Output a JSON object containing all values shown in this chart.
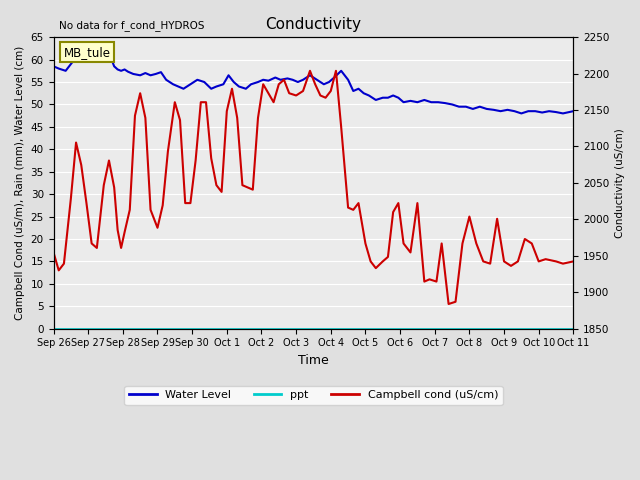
{
  "title": "Conductivity",
  "top_left_note": "No data for f_cond_HYDROS",
  "xlabel": "Time",
  "ylabel_left": "Campbell Cond (uS/m), Rain (mm), Water Level (cm)",
  "ylabel_right": "Conductivity (uS/cm)",
  "ylim_left": [
    0,
    65
  ],
  "ylim_right": [
    1850,
    2250
  ],
  "yticks_left": [
    0,
    5,
    10,
    15,
    20,
    25,
    30,
    35,
    40,
    45,
    50,
    55,
    60,
    65
  ],
  "yticks_right": [
    1850,
    1900,
    1950,
    2000,
    2050,
    2100,
    2150,
    2200,
    2250
  ],
  "xtick_labels": [
    "Sep 26",
    "Sep 27",
    "Sep 28",
    "Sep 29",
    "Sep 30",
    "Oct 1",
    "Oct 2",
    "Oct 3",
    "Oct 4",
    "Oct 5",
    "Oct 6",
    "Oct 7",
    "Oct 8",
    "Oct 9",
    "Oct 10",
    "Oct 11"
  ],
  "background_color": "#e0e0e0",
  "plot_bg_color": "#ebebeb",
  "annotation_box": "MB_tule",
  "annotation_box_bg": "#ffffcc",
  "annotation_box_border": "#888800",
  "water_level_color": "#0000cc",
  "ppt_color": "#00cccc",
  "campbell_cond_color": "#cc0000",
  "grid_color": "#ffffff",
  "linewidth_water": 1.5,
  "linewidth_campbell": 1.5,
  "linewidth_ppt": 1.2,
  "water_level_x": [
    0.0,
    0.15,
    0.35,
    0.55,
    0.75,
    0.95,
    1.1,
    1.25,
    1.4,
    1.55,
    1.65,
    1.75,
    1.85,
    1.95,
    2.05,
    2.15,
    2.3,
    2.5,
    2.65,
    2.8,
    2.95,
    3.1,
    3.25,
    3.45,
    3.6,
    3.75,
    3.95,
    4.15,
    4.35,
    4.55,
    4.7,
    4.9,
    5.05,
    5.2,
    5.35,
    5.55,
    5.7,
    5.9,
    6.05,
    6.2,
    6.4,
    6.55,
    6.75,
    6.9,
    7.05,
    7.2,
    7.4,
    7.6,
    7.8,
    7.95,
    8.1,
    8.3,
    8.5,
    8.65,
    8.8,
    8.95,
    9.1,
    9.3,
    9.5,
    9.65,
    9.8,
    9.95,
    10.1,
    10.3,
    10.5,
    10.7,
    10.9,
    11.1,
    11.3,
    11.5,
    11.7,
    11.9,
    12.1,
    12.3,
    12.5,
    12.7,
    12.9,
    13.1,
    13.3,
    13.5,
    13.7,
    13.9,
    14.1,
    14.3,
    14.5,
    14.7,
    15.0
  ],
  "water_level_y": [
    58.5,
    58.0,
    57.5,
    59.5,
    61.0,
    62.2,
    62.5,
    61.5,
    61.2,
    61.5,
    60.5,
    58.5,
    57.8,
    57.5,
    57.8,
    57.3,
    56.8,
    56.5,
    57.0,
    56.5,
    56.8,
    57.2,
    55.5,
    54.5,
    54.0,
    53.5,
    54.5,
    55.5,
    55.0,
    53.5,
    54.0,
    54.5,
    56.5,
    55.0,
    54.0,
    53.5,
    54.5,
    55.0,
    55.5,
    55.3,
    56.0,
    55.5,
    55.8,
    55.5,
    55.0,
    55.5,
    56.5,
    55.5,
    54.5,
    55.0,
    56.0,
    57.5,
    55.5,
    53.0,
    53.5,
    52.5,
    52.0,
    51.0,
    51.5,
    51.5,
    52.0,
    51.5,
    50.5,
    50.8,
    50.5,
    51.0,
    50.5,
    50.5,
    50.3,
    50.0,
    49.5,
    49.5,
    49.0,
    49.5,
    49.0,
    48.8,
    48.5,
    48.8,
    48.5,
    48.0,
    48.5,
    48.5,
    48.2,
    48.5,
    48.3,
    48.0,
    48.5
  ],
  "campbell_cond_x": [
    0.0,
    0.15,
    0.3,
    0.5,
    0.65,
    0.8,
    0.95,
    1.1,
    1.25,
    1.45,
    1.6,
    1.75,
    1.85,
    1.95,
    2.05,
    2.2,
    2.35,
    2.5,
    2.65,
    2.8,
    3.0,
    3.15,
    3.3,
    3.5,
    3.65,
    3.8,
    3.95,
    4.1,
    4.25,
    4.4,
    4.55,
    4.7,
    4.85,
    5.0,
    5.15,
    5.3,
    5.45,
    5.6,
    5.75,
    5.9,
    6.05,
    6.2,
    6.35,
    6.5,
    6.65,
    6.8,
    7.0,
    7.2,
    7.4,
    7.55,
    7.7,
    7.85,
    8.0,
    8.15,
    8.3,
    8.5,
    8.65,
    8.8,
    9.0,
    9.15,
    9.3,
    9.5,
    9.65,
    9.8,
    9.95,
    10.1,
    10.3,
    10.5,
    10.7,
    10.85,
    11.05,
    11.2,
    11.4,
    11.6,
    11.8,
    12.0,
    12.2,
    12.4,
    12.6,
    12.8,
    13.0,
    13.2,
    13.4,
    13.6,
    13.8,
    14.0,
    14.2,
    14.5,
    14.7,
    15.0
  ],
  "campbell_cond_y": [
    17.0,
    13.0,
    14.5,
    29.0,
    41.5,
    36.5,
    28.0,
    19.0,
    18.0,
    32.0,
    37.5,
    31.5,
    22.0,
    18.0,
    21.5,
    26.5,
    47.5,
    52.5,
    47.0,
    26.5,
    22.5,
    27.5,
    39.5,
    50.5,
    46.5,
    28.0,
    28.0,
    37.5,
    50.5,
    50.5,
    38.0,
    32.0,
    30.5,
    48.5,
    53.5,
    47.0,
    32.0,
    31.5,
    31.0,
    47.0,
    54.5,
    52.5,
    50.5,
    54.5,
    55.5,
    52.5,
    52.0,
    53.0,
    57.5,
    54.5,
    52.0,
    51.5,
    53.0,
    57.5,
    45.0,
    27.0,
    26.5,
    28.0,
    19.0,
    15.0,
    13.5,
    15.0,
    16.0,
    26.0,
    28.0,
    19.0,
    17.0,
    28.0,
    10.5,
    11.0,
    10.5,
    19.0,
    5.5,
    6.0,
    19.0,
    25.0,
    19.0,
    15.0,
    14.5,
    24.5,
    15.0,
    14.0,
    15.0,
    20.0,
    19.0,
    15.0,
    15.5,
    15.0,
    14.5,
    15.0
  ]
}
